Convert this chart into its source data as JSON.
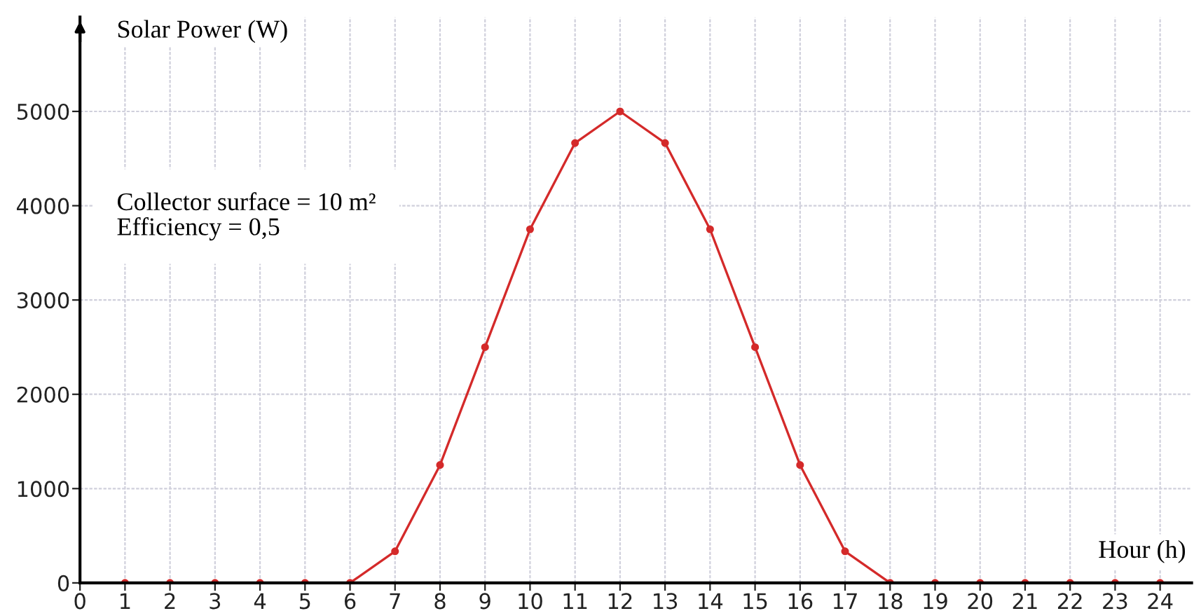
{
  "chart_data": {
    "type": "line",
    "xlabel": "Hour (h)",
    "ylabel": "Solar Power (W)",
    "annotations": [
      "Collector surface = 10 m²\nEfficiency = 0,5"
    ],
    "x": [
      1,
      2,
      3,
      4,
      5,
      6,
      7,
      8,
      9,
      10,
      11,
      12,
      13,
      14,
      15,
      16,
      17,
      18,
      19,
      20,
      21,
      22,
      23,
      24
    ],
    "series": [
      {
        "color": "#d42a2a",
        "values": [
          0,
          0,
          0,
          0,
          0,
          0,
          335,
          1250,
          2500,
          3750,
          4665,
          5000,
          4665,
          3750,
          2500,
          1250,
          335,
          0,
          0,
          0,
          0,
          0,
          0,
          0
        ]
      }
    ],
    "xlim": [
      0,
      24.7
    ],
    "ylim": [
      0,
      6000
    ],
    "xticks": [
      0,
      1,
      2,
      3,
      4,
      5,
      6,
      7,
      8,
      9,
      10,
      11,
      12,
      13,
      14,
      15,
      16,
      17,
      18,
      19,
      20,
      21,
      22,
      23,
      24
    ],
    "yticks": [
      0,
      1000,
      2000,
      3000,
      4000,
      5000
    ],
    "grid": true,
    "marker": "circle",
    "line_style": "solid",
    "legend": false
  }
}
